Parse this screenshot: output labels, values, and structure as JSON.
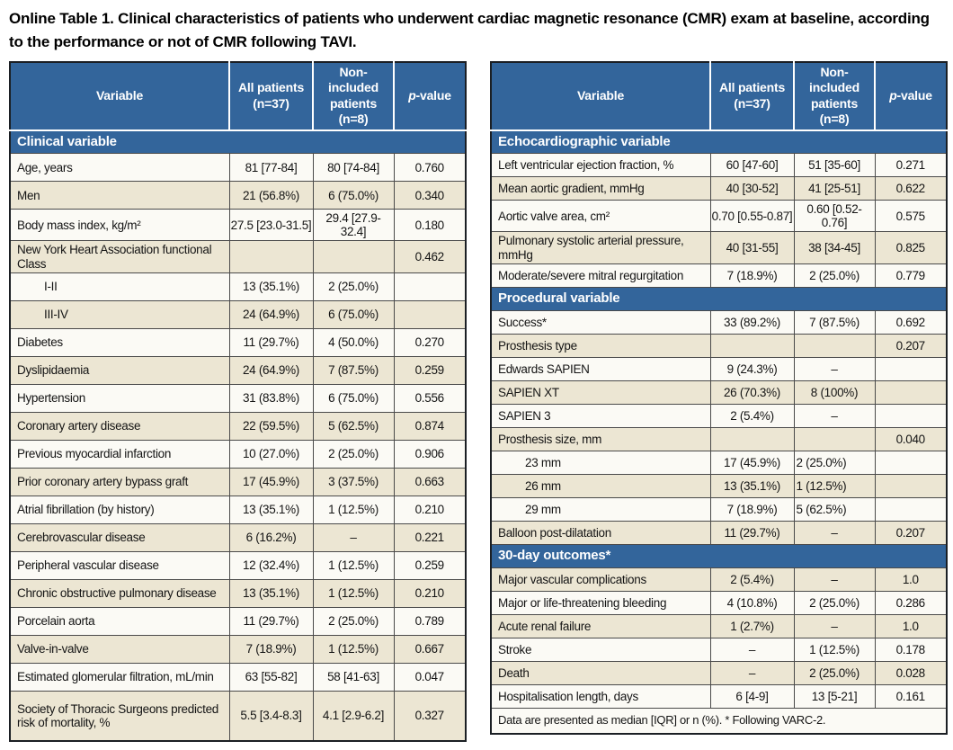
{
  "title": "Online Table 1. Clinical characteristics of patients who underwent cardiac magnetic resonance (CMR) exam at baseline, according to the performance or not of CMR following TAVI.",
  "columns": {
    "variable": "Variable",
    "all_patients": "All patients\n(n=37)",
    "non_included": "Non-included\npatients\n(n=8)",
    "p_italic": "p",
    "p_rest": "-value"
  },
  "left_table": {
    "sections": [
      {
        "title": "Clinical variable",
        "rows": [
          {
            "label": "Age, years",
            "all": "81 [77-84]",
            "non": "80 [74-84]",
            "p": "0.760"
          },
          {
            "label": "Men",
            "all": "21 (56.8%)",
            "non": "6 (75.0%)",
            "p": "0.340"
          },
          {
            "label": "Body mass index, kg/m²",
            "all": "27.5 [23.0-31.5]",
            "non": "29.4 [27.9-32.4]",
            "p": "0.180"
          },
          {
            "label": "New York Heart Association functional Class",
            "all": "",
            "non": "",
            "p": "0.462"
          },
          {
            "label": "I-II",
            "all": "13 (35.1%)",
            "non": "2 (25.0%)",
            "p": "",
            "indent": true
          },
          {
            "label": "III-IV",
            "all": "24 (64.9%)",
            "non": "6 (75.0%)",
            "p": "",
            "indent": true
          },
          {
            "label": "Diabetes",
            "all": "11 (29.7%)",
            "non": "4 (50.0%)",
            "p": "0.270"
          },
          {
            "label": "Dyslipidaemia",
            "all": "24 (64.9%)",
            "non": "7 (87.5%)",
            "p": "0.259"
          },
          {
            "label": "Hypertension",
            "all": "31 (83.8%)",
            "non": "6 (75.0%)",
            "p": "0.556"
          },
          {
            "label": "Coronary artery disease",
            "all": "22 (59.5%)",
            "non": "5 (62.5%)",
            "p": "0.874"
          },
          {
            "label": "Previous myocardial infarction",
            "all": "10 (27.0%)",
            "non": "2 (25.0%)",
            "p": "0.906"
          },
          {
            "label": "Prior coronary artery bypass graft",
            "all": "17 (45.9%)",
            "non": "3 (37.5%)",
            "p": "0.663"
          },
          {
            "label": "Atrial fibrillation (by history)",
            "all": "13 (35.1%)",
            "non": "1 (12.5%)",
            "p": "0.210"
          },
          {
            "label": "Cerebrovascular disease",
            "all": "6 (16.2%)",
            "non": "–",
            "p": "0.221"
          },
          {
            "label": "Peripheral vascular disease",
            "all": "12 (32.4%)",
            "non": "1 (12.5%)",
            "p": "0.259"
          },
          {
            "label": "Chronic obstructive pulmonary disease",
            "all": "13 (35.1%)",
            "non": "1 (12.5%)",
            "p": "0.210"
          },
          {
            "label": "Porcelain aorta",
            "all": "11 (29.7%)",
            "non": "2 (25.0%)",
            "p": "0.789"
          },
          {
            "label": "Valve-in-valve",
            "all": "7 (18.9%)",
            "non": "1 (12.5%)",
            "p": "0.667"
          },
          {
            "label": "Estimated glomerular filtration, mL/min",
            "all": "63 [55-82]",
            "non": "58 [41-63]",
            "p": "0.047"
          },
          {
            "label": "Society of Thoracic Surgeons predicted risk of mortality, %",
            "all": "5.5 [3.4-8.3]",
            "non": "4.1 [2.9-6.2]",
            "p": "0.327",
            "tall": true
          }
        ]
      }
    ]
  },
  "right_table": {
    "sections": [
      {
        "title": "Echocardiographic variable",
        "rows": [
          {
            "label": "Left ventricular ejection fraction, %",
            "all": "60 [47-60]",
            "non": "51 [35-60]",
            "p": "0.271"
          },
          {
            "label": "Mean aortic gradient, mmHg",
            "all": "40 [30-52]",
            "non": "41 [25-51]",
            "p": "0.622"
          },
          {
            "label": "Aortic valve area, cm²",
            "all": "0.70 [0.55-0.87]",
            "non": "0.60 [0.52-0.76]",
            "p": "0.575"
          },
          {
            "label": "Pulmonary systolic arterial pressure, mmHg",
            "all": "40 [31-55]",
            "non": "38 [34-45]",
            "p": "0.825"
          },
          {
            "label": "Moderate/severe mitral regurgitation",
            "all": "7 (18.9%)",
            "non": "2 (25.0%)",
            "p": "0.779"
          }
        ]
      },
      {
        "title": "Procedural variable",
        "rows": [
          {
            "label": "Success*",
            "all": "33 (89.2%)",
            "non": "7 (87.5%)",
            "p": "0.692"
          },
          {
            "label": "Prosthesis type",
            "all": "",
            "non": "",
            "p": "0.207"
          },
          {
            "label": "Edwards SAPIEN",
            "all": "9 (24.3%)",
            "non": "–",
            "p": ""
          },
          {
            "label": "SAPIEN XT",
            "all": "26 (70.3%)",
            "non": "8 (100%)",
            "p": ""
          },
          {
            "label": "SAPIEN 3",
            "all": "2 (5.4%)",
            "non": "–",
            "p": ""
          },
          {
            "label": "Prosthesis size, mm",
            "all": "",
            "non": "",
            "p": "0.040"
          },
          {
            "label": "23 mm",
            "all": "17 (45.9%)",
            "non": "2 (25.0%)",
            "p": "",
            "indent": true,
            "non_left": true
          },
          {
            "label": "26 mm",
            "all": "13 (35.1%)",
            "non": "1 (12.5%)",
            "p": "",
            "indent": true,
            "non_left": true
          },
          {
            "label": "29 mm",
            "all": "7 (18.9%)",
            "non": "5 (62.5%)",
            "p": "",
            "indent": true,
            "non_left": true
          },
          {
            "label": "Balloon post-dilatation",
            "all": "11 (29.7%)",
            "non": "–",
            "p": "0.207"
          }
        ]
      },
      {
        "title": "30-day outcomes*",
        "rows": [
          {
            "label": "Major vascular complications",
            "all": "2 (5.4%)",
            "non": "–",
            "p": "1.0"
          },
          {
            "label": "Major or life-threatening bleeding",
            "all": "4 (10.8%)",
            "non": "2 (25.0%)",
            "p": "0.286"
          },
          {
            "label": "Acute renal failure",
            "all": "1 (2.7%)",
            "non": "–",
            "p": "1.0"
          },
          {
            "label": "Stroke",
            "all": "–",
            "non": "1 (12.5%)",
            "p": "0.178"
          },
          {
            "label": "Death",
            "all": "–",
            "non": "2 (25.0%)",
            "p": "0.028"
          },
          {
            "label": "Hospitalisation length, days",
            "all": "6 [4-9]",
            "non": "13 [5-21]",
            "p": "0.161"
          }
        ]
      }
    ],
    "footnote": "Data are presented as median [IQR] or n (%). * Following VARC-2."
  },
  "colors": {
    "header_blue": "#33659b",
    "row_beige": "#ece6d3",
    "row_white": "#fbfaf5",
    "border_dark": "#1b1f24"
  }
}
